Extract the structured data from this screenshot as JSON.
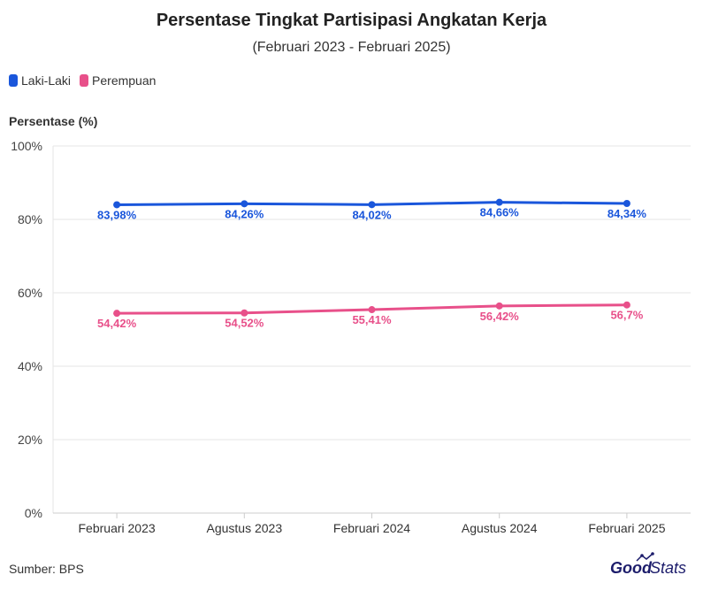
{
  "header": {
    "title": "Persentase Tingkat Partisipasi Angkatan Kerja",
    "subtitle": "(Februari 2023 - Februari 2025)"
  },
  "colors": {
    "laki": "#1a56db",
    "perempuan": "#e8508a",
    "grid": "#e6e6e6",
    "axis": "#cccccc"
  },
  "chart_data": {
    "type": "line",
    "title": "Persentase Tingkat Partisipasi Angkatan Kerja",
    "subtitle": "(Februari 2023 - Februari 2025)",
    "ylabel": "Persentase (%)",
    "xlabel": "",
    "categories": [
      "Februari 2023",
      "Agustus 2023",
      "Februari 2024",
      "Agustus 2024",
      "Februari 2025"
    ],
    "ylim": [
      0,
      100
    ],
    "yticks": [
      "0%",
      "20%",
      "40%",
      "60%",
      "80%",
      "100%"
    ],
    "grid": true,
    "legend_position": "top-left",
    "series": [
      {
        "name": "Laki-Laki",
        "color": "#1a56db",
        "values": [
          83.98,
          84.26,
          84.02,
          84.66,
          84.34
        ],
        "labels": [
          "83,98%",
          "84,26%",
          "84,02%",
          "84,66%",
          "84,34%"
        ]
      },
      {
        "name": "Perempuan",
        "color": "#e8508a",
        "values": [
          54.42,
          54.52,
          55.41,
          56.42,
          56.7
        ],
        "labels": [
          "54,42%",
          "54,52%",
          "55,41%",
          "56,42%",
          "56,7%"
        ]
      }
    ]
  },
  "footer": {
    "source": "Sumber: BPS"
  },
  "logo": {
    "good": "Good",
    "stats": "Stats",
    "icon": "trend-line-icon"
  }
}
